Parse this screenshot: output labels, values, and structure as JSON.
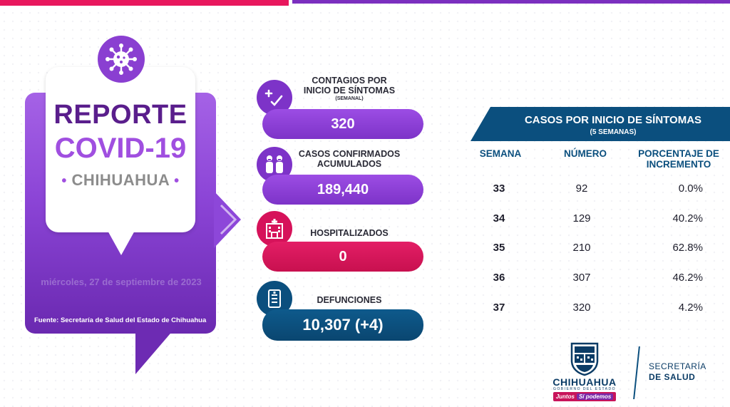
{
  "colors": {
    "purple": "#8a3fd1",
    "pink": "#e31e66",
    "navy": "#0b4f7e"
  },
  "hero": {
    "title_line1": "REPORTE",
    "title_line2": "COVID-19",
    "title_line3": "CHIHUAHUA",
    "date": "miércoles, 27 de septiembre de 2023",
    "source": "Fuente: Secretaría de Salud del Estado de Chihuahua"
  },
  "stats": [
    {
      "icon": "plus-check-icon",
      "label_line1": "CONTAGIOS POR",
      "label_line2": "INICIO DE SÍNTOMAS",
      "sublabel": "(SEMANAL)",
      "value": "320"
    },
    {
      "icon": "people-confirmed-icon",
      "label_line1": "CASOS CONFIRMADOS",
      "label_line2": "ACUMULADOS",
      "value": "189,440"
    },
    {
      "icon": "hospital-icon",
      "label_line1": "HOSPITALIZADOS",
      "value": "0"
    },
    {
      "icon": "document-icon",
      "label_line1": "DEFUNCIONES",
      "value": "10,307 (+4)"
    }
  ],
  "table": {
    "title": "CASOS POR INICIO DE SÍNTOMAS",
    "subtitle": "(5 SEMANAS)",
    "col_week": "SEMANA",
    "col_number": "NÚMERO",
    "col_pct_line1": "PORCENTAJE DE",
    "col_pct_line2": "INCREMENTO",
    "rows": [
      {
        "week": "33",
        "number": "92",
        "pct": "0.0%"
      },
      {
        "week": "34",
        "number": "129",
        "pct": "40.2%"
      },
      {
        "week": "35",
        "number": "210",
        "pct": "62.8%"
      },
      {
        "week": "36",
        "number": "307",
        "pct": "46.2%"
      },
      {
        "week": "37",
        "number": "320",
        "pct": "4.2%"
      }
    ]
  },
  "logos": {
    "gov_name": "CHIHUAHUA",
    "gov_sub": "GOBIERNO DEL ESTADO",
    "slogan_part1": "Juntos",
    "slogan_part2": "Sí podemos",
    "secretaria_line1": "SECRETARÍA",
    "secretaria_line2": "DE SALUD"
  }
}
